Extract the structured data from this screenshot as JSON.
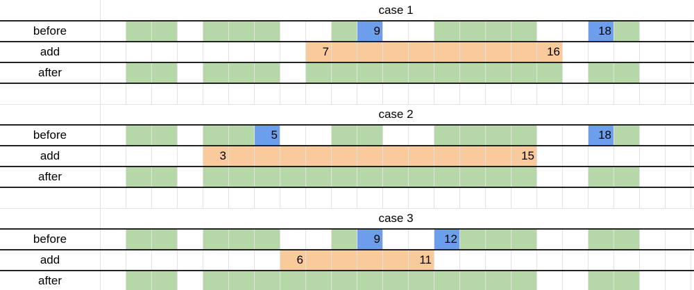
{
  "colors": {
    "G": "#b6d7a8",
    "B": "#6d9eeb",
    "O": "#f9cb9c"
  },
  "cases": [
    {
      "title": "case 1",
      "rows": [
        {
          "label": "before",
          "cells": "_GG_GGG__GB__GGGG__BG__",
          "texts": {
            "10": "9",
            "19": "18"
          }
        },
        {
          "label": "add",
          "cells": "________OOOOOOOOOO_____",
          "texts": {
            "8": "7",
            "17": "16"
          }
        },
        {
          "label": "after",
          "cells": "_GG_GGG_GGGGGGGGGG_GG__",
          "texts": {}
        }
      ]
    },
    {
      "title": "case 2",
      "rows": [
        {
          "label": "before",
          "cells": "_GG_GGB__GG__GGGG__BG__",
          "texts": {
            "6": "5",
            "19": "18"
          }
        },
        {
          "label": "add",
          "cells": "____OOOOOOOOOOOOO______",
          "texts": {
            "4": "3",
            "16": "15"
          }
        },
        {
          "label": "after",
          "cells": "_GG_GGGGGGGGGGGGG__GG__",
          "texts": {}
        }
      ]
    },
    {
      "title": "case 3",
      "rows": [
        {
          "label": "before",
          "cells": "_GG_GGG__GB__BGGG__GG__",
          "texts": {
            "10": "9",
            "13": "12"
          }
        },
        {
          "label": "add",
          "cells": "_______OOOOOO__________",
          "texts": {
            "7": "6",
            "12": "11"
          }
        },
        {
          "label": "after",
          "cells": "_GG_GGGGGGGGGGGGG__GG__",
          "texts": {}
        }
      ]
    }
  ]
}
